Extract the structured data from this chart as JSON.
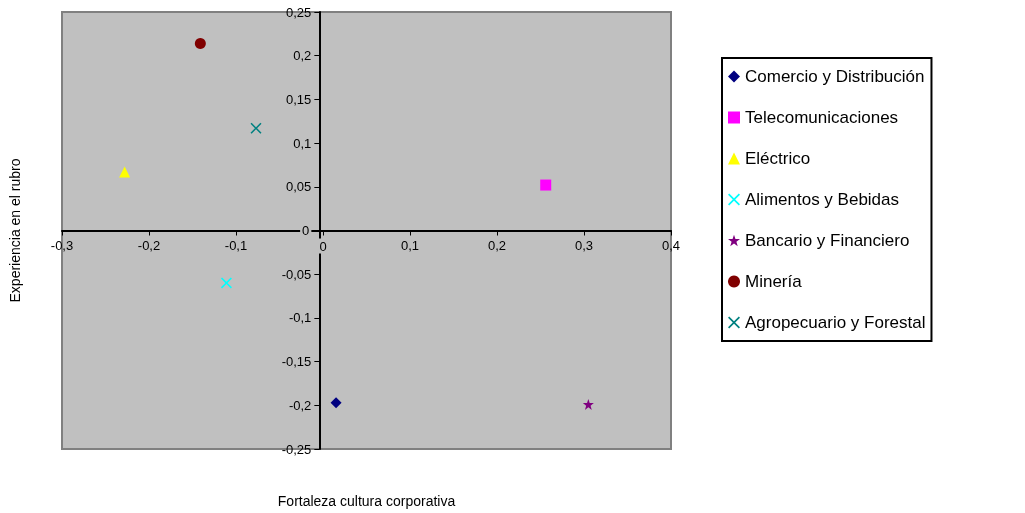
{
  "chart_data": {
    "type": "scatter",
    "xlabel": "Fortaleza cultura corporativa",
    "ylabel": "Experiencia en el rubro",
    "xlim": [
      -0.3,
      0.4
    ],
    "xticks": [
      {
        "value": -0.3,
        "label": "-0,3"
      },
      {
        "value": -0.2,
        "label": "-0,2"
      },
      {
        "value": -0.1,
        "label": "-0,1"
      },
      0,
      {
        "value": 0.1,
        "label": "0,1"
      },
      {
        "value": 0.2,
        "label": "0,2"
      },
      {
        "value": 0.3,
        "label": "0,3"
      },
      {
        "value": 0.4,
        "label": "0,4"
      }
    ],
    "ylim": [
      -0.25,
      0.25
    ],
    "yticks": [
      {
        "value": -0.25,
        "label": "-0,25"
      },
      {
        "value": -0.2,
        "label": "-0,2"
      },
      {
        "value": -0.15,
        "label": "-0,15"
      },
      {
        "value": -0.1,
        "label": "-0,1"
      },
      {
        "value": -0.05,
        "label": "-0,05"
      },
      0,
      {
        "value": 0.05,
        "label": "0,05"
      },
      {
        "value": 0.1,
        "label": "0,1"
      },
      {
        "value": 0.15,
        "label": "0,15"
      },
      {
        "value": 0.2,
        "label": "0,2"
      },
      {
        "value": 0.25,
        "label": "0,25"
      }
    ],
    "grid": false,
    "legend": "right",
    "series": [
      {
        "name": "Comercio y Distribución",
        "color": "#000080",
        "marker": "diamond",
        "x": [
          0.015
        ],
        "values": [
          -0.197
        ]
      },
      {
        "name": "Telecomunicaciones",
        "color": "#ff00ff",
        "marker": "square",
        "x": [
          0.256
        ],
        "values": [
          0.052
        ]
      },
      {
        "name": "Eléctrico",
        "color": "#ffff00",
        "marker": "triangle",
        "x": [
          -0.228
        ],
        "values": [
          0.067
        ]
      },
      {
        "name": "Alimentos y Bebidas",
        "color": "#00ffff",
        "marker": "cross",
        "x": [
          -0.111
        ],
        "values": [
          -0.06
        ]
      },
      {
        "name": "Bancario y Financiero",
        "color": "#800080",
        "marker": "star",
        "x": [
          0.305
        ],
        "values": [
          -0.199
        ]
      },
      {
        "name": "Minería",
        "color": "#800000",
        "marker": "circle",
        "x": [
          -0.141
        ],
        "values": [
          0.214
        ]
      },
      {
        "name": "Agropecuario y Forestal",
        "color": "#008080",
        "marker": "cross",
        "x": [
          -0.077
        ],
        "values": [
          0.117
        ]
      }
    ]
  }
}
